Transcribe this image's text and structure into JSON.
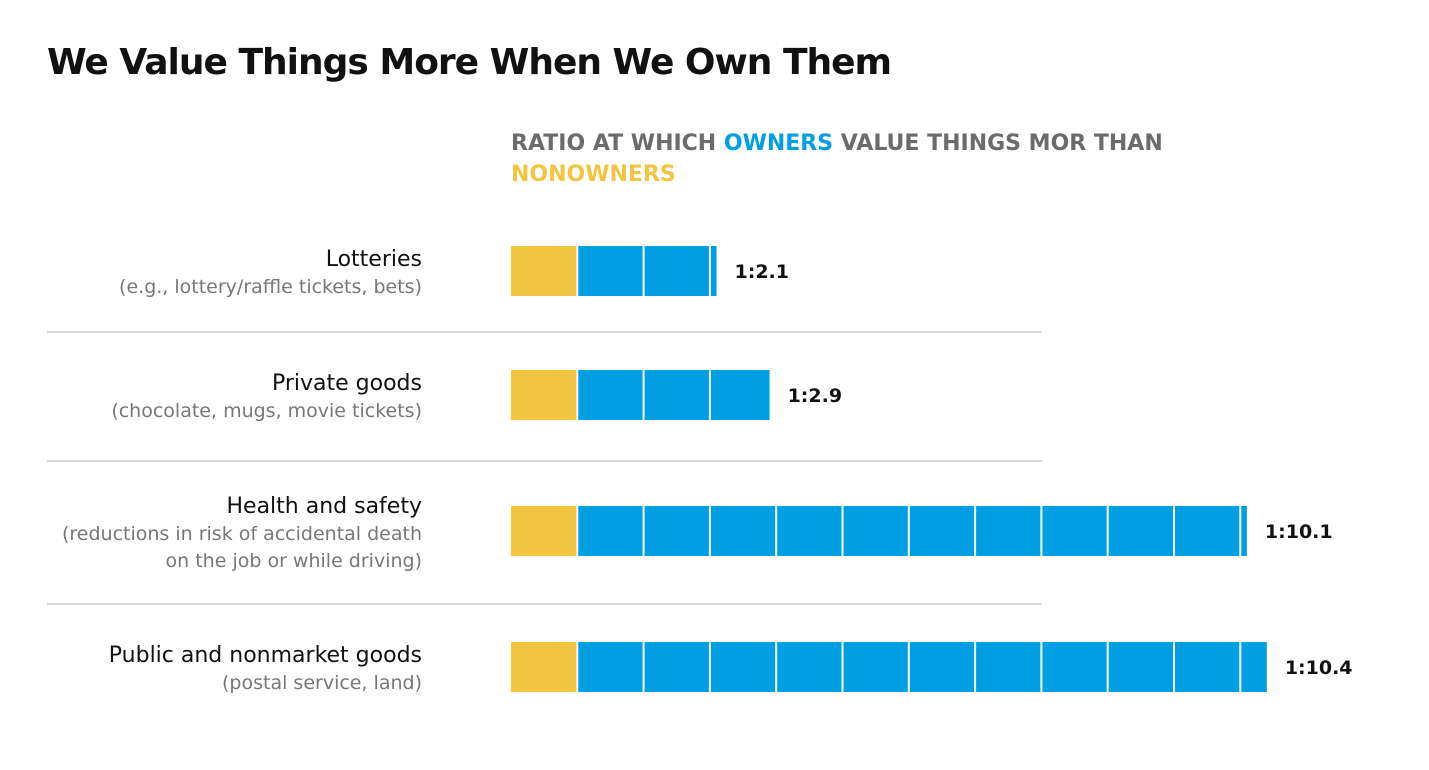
{
  "chart_data": {
    "type": "bar",
    "title": "We Value Things More When We Own Them",
    "subtitle": {
      "prefix": "RATIO AT WHICH ",
      "owners": "OWNERS",
      "middle": " VALUE THINGS MOR THAN ",
      "nonowners": "NONOWNERS"
    },
    "unit": 1,
    "series": [
      {
        "name": "Nonowners",
        "color": "#f2c43f"
      },
      {
        "name": "Owners",
        "color": "#009fe3"
      }
    ],
    "categories": [
      {
        "name": "Lotteries",
        "sub": "(e.g., lottery/raffle tickets, bets)",
        "nonowner": 1,
        "owner": 2.1,
        "label": "1:2.1"
      },
      {
        "name": "Private goods",
        "sub": "(chocolate, mugs, movie tickets)",
        "nonowner": 1,
        "owner": 2.9,
        "label": "1:2.9"
      },
      {
        "name": "Health and safety",
        "sub": "(reductions in risk of accidental death on the job or while driving)",
        "nonowner": 1,
        "owner": 10.1,
        "label": "1:10.1"
      },
      {
        "name": "Public and nonmarket goods",
        "sub": "(postal service, land)",
        "nonowner": 1,
        "owner": 10.4,
        "label": "1:10.4"
      }
    ]
  }
}
